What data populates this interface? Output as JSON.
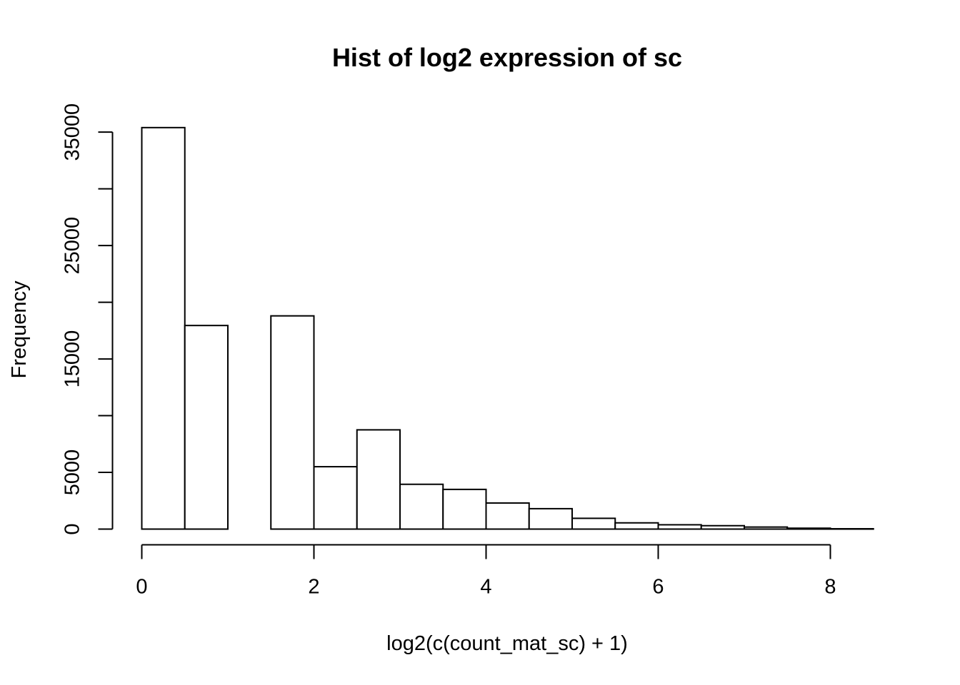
{
  "chart_data": {
    "type": "histogram",
    "title": "Hist of log2 expression of sc",
    "xlabel": "log2(c(count_mat_sc) + 1)",
    "ylabel": "Frequency",
    "bin_width": 0.5,
    "bins": [
      {
        "start": 0.0,
        "end": 0.5,
        "count": 35400
      },
      {
        "start": 0.5,
        "end": 1.0,
        "count": 17950
      },
      {
        "start": 1.0,
        "end": 1.5,
        "count": 0
      },
      {
        "start": 1.5,
        "end": 2.0,
        "count": 18800
      },
      {
        "start": 2.0,
        "end": 2.5,
        "count": 5500
      },
      {
        "start": 2.5,
        "end": 3.0,
        "count": 8750
      },
      {
        "start": 3.0,
        "end": 3.5,
        "count": 3950
      },
      {
        "start": 3.5,
        "end": 4.0,
        "count": 3500
      },
      {
        "start": 4.0,
        "end": 4.5,
        "count": 2300
      },
      {
        "start": 4.5,
        "end": 5.0,
        "count": 1800
      },
      {
        "start": 5.0,
        "end": 5.5,
        "count": 950
      },
      {
        "start": 5.5,
        "end": 6.0,
        "count": 550
      },
      {
        "start": 6.0,
        "end": 6.5,
        "count": 380
      },
      {
        "start": 6.5,
        "end": 7.0,
        "count": 300
      },
      {
        "start": 7.0,
        "end": 7.5,
        "count": 180
      },
      {
        "start": 7.5,
        "end": 8.0,
        "count": 80
      },
      {
        "start": 8.0,
        "end": 8.5,
        "count": 30
      }
    ],
    "xlim": [
      0,
      8.5
    ],
    "ylim": [
      0,
      35400
    ],
    "x_axis_range": [
      0,
      8
    ],
    "x_ticks": [
      0,
      2,
      4,
      6,
      8
    ],
    "x_tick_labels": [
      "0",
      "2",
      "4",
      "6",
      "8"
    ],
    "y_ticks": [
      0,
      5000,
      10000,
      15000,
      20000,
      25000,
      30000,
      35000
    ],
    "y_tick_labels": [
      "0",
      "5000",
      "",
      "15000",
      "",
      "25000",
      "",
      "35000"
    ],
    "grid": false,
    "legend": "none"
  }
}
